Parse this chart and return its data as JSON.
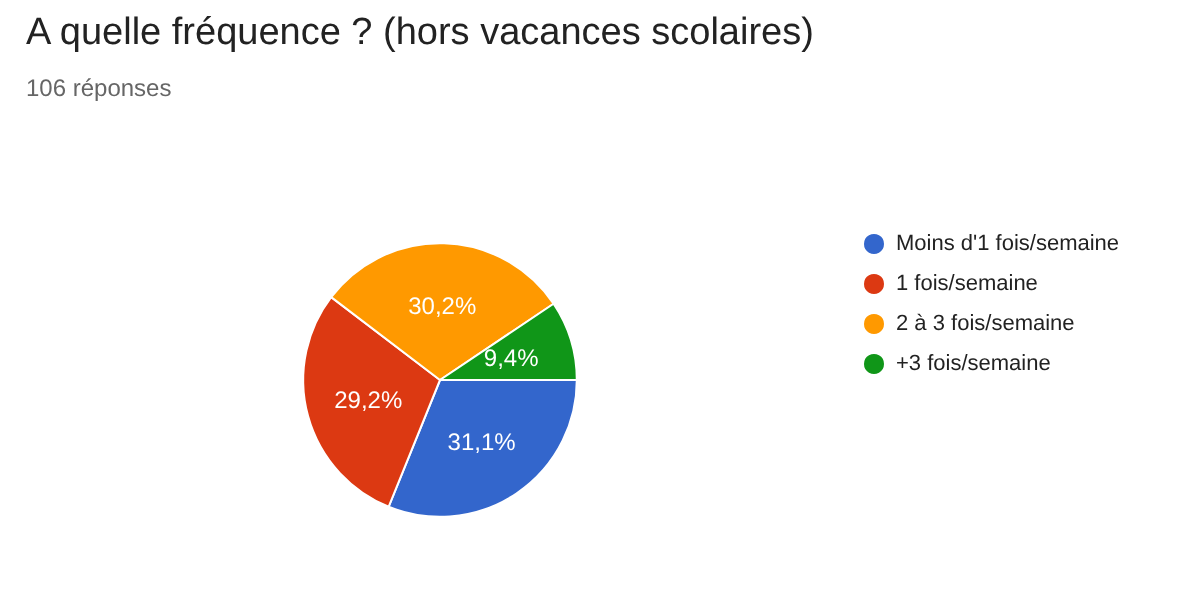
{
  "chart_data": {
    "type": "pie",
    "title": "A quelle fréquence ? (hors vacances scolaires)",
    "subtitle": "106 réponses",
    "categories": [
      "Moins d'1 fois/semaine",
      "1 fois/semaine",
      "2 à 3 fois/semaine",
      "+3 fois/semaine"
    ],
    "values": [
      31.1,
      29.2,
      30.2,
      9.4
    ],
    "colors": [
      "#3366cc",
      "#dc3912",
      "#ff9900",
      "#109618"
    ],
    "value_labels": [
      "31,1%",
      "29,2%",
      "30,2%",
      "9,4%"
    ],
    "legend": "right"
  }
}
